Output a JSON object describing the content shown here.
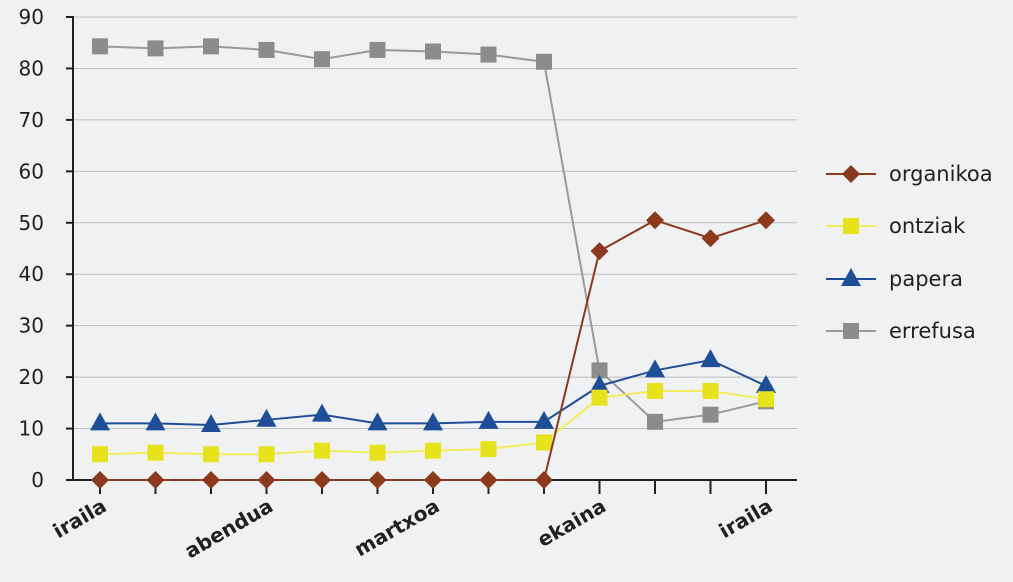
{
  "chart_data": {
    "type": "line",
    "title": "",
    "xlabel": "",
    "ylabel": "",
    "ylim": [
      0,
      90
    ],
    "yticks": [
      0,
      10,
      20,
      30,
      40,
      50,
      60,
      70,
      80,
      90
    ],
    "grid": true,
    "legend_position": "right",
    "n_points": 13,
    "x_tick_labels": [
      {
        "index": 0,
        "label": "iraila"
      },
      {
        "index": 3,
        "label": "abendua"
      },
      {
        "index": 6,
        "label": "martxoa"
      },
      {
        "index": 9,
        "label": "ekaina"
      },
      {
        "index": 12,
        "label": "iraila"
      }
    ],
    "series": [
      {
        "name": "organikoa",
        "color": "#8b3a1e",
        "marker": "diamond",
        "values": [
          0,
          0,
          0,
          0,
          0,
          0,
          0,
          0,
          0,
          44.5,
          50.5,
          47,
          50.5
        ]
      },
      {
        "name": "ontziak",
        "color": "#e6e21c",
        "line_color": "#f2ec5a",
        "marker": "square",
        "values": [
          5,
          5.3,
          5,
          5,
          5.7,
          5.3,
          5.7,
          6,
          7.3,
          16,
          17.3,
          17.3,
          15.7
        ]
      },
      {
        "name": "papera",
        "color": "#1f4e99",
        "marker": "triangle",
        "values": [
          11,
          11,
          10.7,
          11.7,
          12.7,
          11,
          11,
          11.3,
          11.3,
          18.3,
          21.3,
          23.3,
          18.3
        ]
      },
      {
        "name": "errefusa",
        "color": "#8c8c8c",
        "line_color": "#9a9a9a",
        "marker": "square",
        "values": [
          84.3,
          83.9,
          84.3,
          83.6,
          81.8,
          83.6,
          83.3,
          82.7,
          81.3,
          21.3,
          11.3,
          12.7,
          15.3
        ]
      }
    ]
  }
}
